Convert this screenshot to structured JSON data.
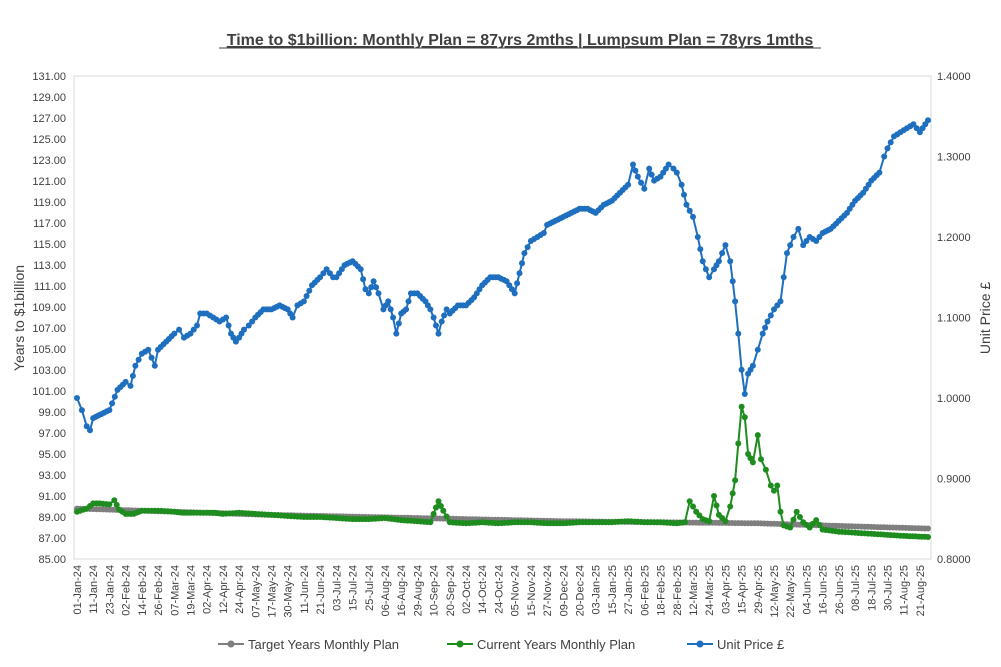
{
  "chart_data": {
    "type": "line",
    "title": "Time to $1billion: Monthly Plan = 87yrs 2mths | Lumpsum Plan = 78yrs 1mths",
    "ylabel": "Years to $1billion",
    "y2label": "Unit Price £",
    "ylim": [
      85,
      131
    ],
    "y2lim": [
      0.8,
      1.4
    ],
    "yticks": [
      "131.00",
      "129.00",
      "127.00",
      "125.00",
      "123.00",
      "121.00",
      "119.00",
      "117.00",
      "115.00",
      "113.00",
      "111.00",
      "109.00",
      "107.00",
      "105.00",
      "103.00",
      "101.00",
      "99.00",
      "97.00",
      "95.00",
      "93.00",
      "91.00",
      "89.00",
      "87.00",
      "85.00"
    ],
    "y2ticks": [
      "1.4000",
      "1.3000",
      "1.2000",
      "1.1000",
      "1.0000",
      "0.9000",
      "0.8000"
    ],
    "categories": [
      "01-Jan-24",
      "11-Jan-24",
      "23-Jan-24",
      "02-Feb-24",
      "14-Feb-24",
      "26-Feb-24",
      "07-Mar-24",
      "19-Mar-24",
      "02-Apr-24",
      "12-Apr-24",
      "24-Apr-24",
      "07-May-24",
      "17-May-24",
      "30-May-24",
      "11-Jun-24",
      "21-Jun-24",
      "03-Jul-24",
      "15-Jul-24",
      "25-Jul-24",
      "06-Aug-24",
      "16-Aug-24",
      "29-Aug-24",
      "10-Sep-24",
      "20-Sep-24",
      "02-Oct-24",
      "14-Oct-24",
      "24-Oct-24",
      "05-Nov-24",
      "15-Nov-24",
      "27-Nov-24",
      "09-Dec-24",
      "20-Dec-24",
      "03-Jan-25",
      "15-Jan-25",
      "27-Jan-25",
      "06-Feb-25",
      "18-Feb-25",
      "28-Feb-25",
      "12-Mar-25",
      "24-Mar-25",
      "03-Apr-25",
      "15-Apr-25",
      "29-Apr-25",
      "12-May-25",
      "22-May-25",
      "04-Jun-25",
      "16-Jun-25",
      "26-Jun-25",
      "08-Jul-25",
      "18-Jul-25",
      "30-Jul-25",
      "11-Aug-25",
      "21-Aug-25"
    ],
    "legend_position": "bottom",
    "series": [
      {
        "name": "Target Years Monthly Plan",
        "axis": "left",
        "color": "#7f7f7f",
        "keypoints": [
          [
            0,
            89.8
          ],
          [
            6,
            89.5
          ],
          [
            12,
            89.2
          ],
          [
            18,
            89.0
          ],
          [
            24,
            88.8
          ],
          [
            30,
            88.6
          ],
          [
            36,
            88.5
          ],
          [
            42,
            88.4
          ],
          [
            48,
            88.1
          ],
          [
            52.5,
            87.9
          ]
        ]
      },
      {
        "name": "Current Years Monthly Plan",
        "axis": "left",
        "color": "#1e8c1e",
        "keypoints": [
          [
            0,
            89.5
          ],
          [
            0.6,
            89.8
          ],
          [
            1,
            90.3
          ],
          [
            1.4,
            90.3
          ],
          [
            2,
            90.2
          ],
          [
            2.3,
            90.6
          ],
          [
            2.6,
            89.7
          ],
          [
            3,
            89.3
          ],
          [
            3.5,
            89.3
          ],
          [
            4,
            89.6
          ],
          [
            5,
            89.6
          ],
          [
            6,
            89.5
          ],
          [
            6.5,
            89.4
          ],
          [
            7,
            89.4
          ],
          [
            8,
            89.4
          ],
          [
            8.5,
            89.4
          ],
          [
            9,
            89.3
          ],
          [
            10,
            89.4
          ],
          [
            11,
            89.3
          ],
          [
            12,
            89.2
          ],
          [
            13,
            89.1
          ],
          [
            14,
            89.0
          ],
          [
            15,
            89.0
          ],
          [
            16,
            88.9
          ],
          [
            17,
            88.8
          ],
          [
            18,
            88.8
          ],
          [
            19,
            88.9
          ],
          [
            20,
            88.7
          ],
          [
            21,
            88.6
          ],
          [
            21.8,
            88.5
          ],
          [
            22,
            89.3
          ],
          [
            22.3,
            90.5
          ],
          [
            22.6,
            89.6
          ],
          [
            23,
            88.5
          ],
          [
            24,
            88.4
          ],
          [
            25,
            88.5
          ],
          [
            26,
            88.4
          ],
          [
            27,
            88.5
          ],
          [
            28,
            88.5
          ],
          [
            29,
            88.4
          ],
          [
            30,
            88.4
          ],
          [
            31,
            88.5
          ],
          [
            32,
            88.5
          ],
          [
            33,
            88.5
          ],
          [
            34,
            88.6
          ],
          [
            35,
            88.5
          ],
          [
            36,
            88.5
          ],
          [
            37,
            88.4
          ],
          [
            37.5,
            88.5
          ],
          [
            37.8,
            90.5
          ],
          [
            38.2,
            89.5
          ],
          [
            38.6,
            88.8
          ],
          [
            39,
            88.6
          ],
          [
            39.3,
            91.0
          ],
          [
            39.6,
            89.2
          ],
          [
            40,
            88.6
          ],
          [
            40.3,
            90.0
          ],
          [
            40.6,
            92.5
          ],
          [
            40.8,
            96.0
          ],
          [
            41.0,
            99.5
          ],
          [
            41.2,
            98.5
          ],
          [
            41.4,
            95.0
          ],
          [
            41.7,
            94.2
          ],
          [
            42.0,
            96.8
          ],
          [
            42.2,
            94.5
          ],
          [
            42.5,
            93.5
          ],
          [
            42.8,
            92.0
          ],
          [
            43.0,
            91.5
          ],
          [
            43.2,
            92.0
          ],
          [
            43.4,
            89.5
          ],
          [
            43.6,
            88.2
          ],
          [
            44,
            88.0
          ],
          [
            44.4,
            89.5
          ],
          [
            44.8,
            88.5
          ],
          [
            45.2,
            88.0
          ],
          [
            45.6,
            88.7
          ],
          [
            46,
            87.8
          ],
          [
            47,
            87.6
          ],
          [
            48,
            87.5
          ],
          [
            49,
            87.4
          ],
          [
            50,
            87.3
          ],
          [
            51,
            87.2
          ],
          [
            52.5,
            87.1
          ]
        ]
      },
      {
        "name": "Unit Price £",
        "axis": "right",
        "color": "#1f6fbf",
        "keypoints": [
          [
            0,
            1.0
          ],
          [
            0.3,
            0.985
          ],
          [
            0.6,
            0.965
          ],
          [
            0.8,
            0.96
          ],
          [
            1.0,
            0.975
          ],
          [
            1.5,
            0.98
          ],
          [
            2,
            0.985
          ],
          [
            2.5,
            1.01
          ],
          [
            3,
            1.02
          ],
          [
            3.3,
            1.015
          ],
          [
            3.6,
            1.04
          ],
          [
            4,
            1.055
          ],
          [
            4.4,
            1.06
          ],
          [
            4.6,
            1.05
          ],
          [
            4.8,
            1.04
          ],
          [
            5,
            1.06
          ],
          [
            5.5,
            1.07
          ],
          [
            6,
            1.08
          ],
          [
            6.3,
            1.085
          ],
          [
            6.6,
            1.075
          ],
          [
            7,
            1.08
          ],
          [
            7.4,
            1.09
          ],
          [
            7.6,
            1.105
          ],
          [
            8,
            1.105
          ],
          [
            8.4,
            1.1
          ],
          [
            8.8,
            1.095
          ],
          [
            9.2,
            1.1
          ],
          [
            9.5,
            1.08
          ],
          [
            9.8,
            1.07
          ],
          [
            10,
            1.075
          ],
          [
            10.3,
            1.085
          ],
          [
            10.6,
            1.09
          ],
          [
            11,
            1.1
          ],
          [
            11.5,
            1.11
          ],
          [
            12,
            1.11
          ],
          [
            12.5,
            1.115
          ],
          [
            13,
            1.11
          ],
          [
            13.3,
            1.1
          ],
          [
            13.6,
            1.115
          ],
          [
            14,
            1.12
          ],
          [
            14.5,
            1.14
          ],
          [
            15,
            1.15
          ],
          [
            15.4,
            1.16
          ],
          [
            15.8,
            1.15
          ],
          [
            16,
            1.15
          ],
          [
            16.5,
            1.165
          ],
          [
            17,
            1.17
          ],
          [
            17.5,
            1.16
          ],
          [
            17.8,
            1.135
          ],
          [
            18,
            1.13
          ],
          [
            18.3,
            1.145
          ],
          [
            18.6,
            1.13
          ],
          [
            18.9,
            1.11
          ],
          [
            19.2,
            1.12
          ],
          [
            19.5,
            1.1
          ],
          [
            19.7,
            1.08
          ],
          [
            20,
            1.105
          ],
          [
            20.3,
            1.11
          ],
          [
            20.6,
            1.13
          ],
          [
            21,
            1.13
          ],
          [
            21.5,
            1.12
          ],
          [
            21.8,
            1.11
          ],
          [
            22,
            1.1
          ],
          [
            22.3,
            1.08
          ],
          [
            22.5,
            1.095
          ],
          [
            22.8,
            1.11
          ],
          [
            23,
            1.105
          ],
          [
            23.5,
            1.115
          ],
          [
            24,
            1.115
          ],
          [
            24.5,
            1.125
          ],
          [
            25,
            1.14
          ],
          [
            25.5,
            1.15
          ],
          [
            26,
            1.15
          ],
          [
            26.5,
            1.145
          ],
          [
            27,
            1.13
          ],
          [
            27.3,
            1.155
          ],
          [
            27.6,
            1.18
          ],
          [
            28,
            1.195
          ],
          [
            28.4,
            1.2
          ],
          [
            28.8,
            1.205
          ],
          [
            29,
            1.215
          ],
          [
            29.5,
            1.22
          ],
          [
            30,
            1.225
          ],
          [
            30.5,
            1.23
          ],
          [
            31,
            1.235
          ],
          [
            31.5,
            1.235
          ],
          [
            32,
            1.23
          ],
          [
            32.5,
            1.24
          ],
          [
            33,
            1.245
          ],
          [
            33.5,
            1.255
          ],
          [
            34,
            1.265
          ],
          [
            34.3,
            1.29
          ],
          [
            34.6,
            1.275
          ],
          [
            35,
            1.26
          ],
          [
            35.3,
            1.285
          ],
          [
            35.6,
            1.27
          ],
          [
            36,
            1.275
          ],
          [
            36.5,
            1.29
          ],
          [
            36.8,
            1.285
          ],
          [
            37,
            1.28
          ],
          [
            37.3,
            1.265
          ],
          [
            37.6,
            1.24
          ],
          [
            38,
            1.225
          ],
          [
            38.3,
            1.2
          ],
          [
            38.6,
            1.17
          ],
          [
            39,
            1.15
          ],
          [
            39.3,
            1.16
          ],
          [
            39.6,
            1.17
          ],
          [
            40,
            1.19
          ],
          [
            40.3,
            1.17
          ],
          [
            40.6,
            1.12
          ],
          [
            40.8,
            1.08
          ],
          [
            41.0,
            1.035
          ],
          [
            41.2,
            1.005
          ],
          [
            41.4,
            1.03
          ],
          [
            41.7,
            1.04
          ],
          [
            42.0,
            1.06
          ],
          [
            42.3,
            1.08
          ],
          [
            42.6,
            1.095
          ],
          [
            43,
            1.11
          ],
          [
            43.4,
            1.12
          ],
          [
            43.8,
            1.18
          ],
          [
            44.2,
            1.2
          ],
          [
            44.5,
            1.21
          ],
          [
            44.8,
            1.19
          ],
          [
            45.2,
            1.2
          ],
          [
            45.6,
            1.195
          ],
          [
            46,
            1.205
          ],
          [
            46.5,
            1.21
          ],
          [
            47,
            1.22
          ],
          [
            47.5,
            1.23
          ],
          [
            48,
            1.245
          ],
          [
            48.5,
            1.255
          ],
          [
            49,
            1.27
          ],
          [
            49.5,
            1.28
          ],
          [
            49.8,
            1.3
          ],
          [
            50,
            1.31
          ],
          [
            50.4,
            1.325
          ],
          [
            50.8,
            1.33
          ],
          [
            51.2,
            1.335
          ],
          [
            51.6,
            1.34
          ],
          [
            52,
            1.33
          ],
          [
            52.5,
            1.345
          ]
        ]
      }
    ]
  }
}
